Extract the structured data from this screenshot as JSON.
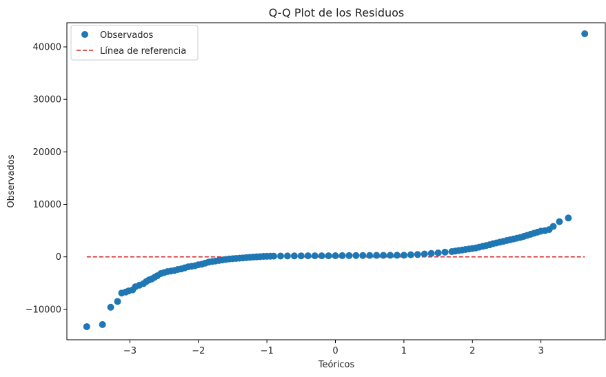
{
  "chart_data": {
    "type": "scatter",
    "title": "Q-Q Plot de los Residuos",
    "xlabel": "Teóricos",
    "ylabel": "Observados",
    "xlim": [
      -3.92,
      3.94
    ],
    "ylim": [
      -15800,
      44600
    ],
    "x_ticks": [
      -3,
      -2,
      -1,
      0,
      1,
      2,
      3
    ],
    "x_tick_labels": [
      "−3",
      "−2",
      "−1",
      "0",
      "1",
      "2",
      "3"
    ],
    "y_ticks": [
      -10000,
      0,
      10000,
      20000,
      30000,
      40000
    ],
    "y_tick_labels": [
      "−10000",
      "0",
      "10000",
      "20000",
      "30000",
      "40000"
    ],
    "legend": {
      "position": "top-left",
      "entries": [
        "Observados",
        "Línea de referencia"
      ]
    },
    "colors": {
      "points": "#1f77b4",
      "reference": "#d62728"
    },
    "series": [
      {
        "name": "Observados",
        "kind": "scatter",
        "x": [
          -3.63,
          -3.4,
          -3.28,
          -3.18,
          -3.12,
          -3.06,
          -3.02,
          -2.96,
          -2.92,
          -2.86,
          -2.8,
          -2.76,
          -2.72,
          -2.68,
          -2.64,
          -2.6,
          -2.55,
          -2.5,
          -2.45,
          -2.4,
          -2.35,
          -2.3,
          -2.25,
          -2.2,
          -2.15,
          -2.1,
          -2.05,
          -2.0,
          -1.95,
          -1.9,
          -1.85,
          -1.8,
          -1.75,
          -1.7,
          -1.65,
          -1.6,
          -1.55,
          -1.5,
          -1.45,
          -1.4,
          -1.35,
          -1.3,
          -1.25,
          -1.2,
          -1.15,
          -1.1,
          -1.05,
          -1.0,
          -0.95,
          -0.9,
          -0.8,
          -0.7,
          -0.6,
          -0.5,
          -0.4,
          -0.3,
          -0.2,
          -0.1,
          0.0,
          0.1,
          0.2,
          0.3,
          0.4,
          0.5,
          0.6,
          0.7,
          0.8,
          0.9,
          1.0,
          1.1,
          1.2,
          1.3,
          1.4,
          1.5,
          1.6,
          1.7,
          1.75,
          1.8,
          1.85,
          1.9,
          1.95,
          2.0,
          2.05,
          2.1,
          2.15,
          2.2,
          2.25,
          2.3,
          2.35,
          2.4,
          2.45,
          2.5,
          2.55,
          2.6,
          2.65,
          2.7,
          2.75,
          2.8,
          2.85,
          2.9,
          2.95,
          3.0,
          3.06,
          3.12,
          3.18,
          3.27,
          3.4,
          3.64
        ],
        "y": [
          -13300,
          -12900,
          -9600,
          -8500,
          -6900,
          -6700,
          -6500,
          -6300,
          -5700,
          -5400,
          -5100,
          -4700,
          -4400,
          -4200,
          -3900,
          -3600,
          -3200,
          -3000,
          -2800,
          -2700,
          -2600,
          -2400,
          -2300,
          -2100,
          -1900,
          -1800,
          -1700,
          -1500,
          -1400,
          -1200,
          -1000,
          -900,
          -800,
          -700,
          -600,
          -500,
          -400,
          -350,
          -300,
          -250,
          -200,
          -150,
          -100,
          -50,
          0,
          40,
          80,
          100,
          120,
          140,
          160,
          170,
          180,
          190,
          200,
          200,
          200,
          210,
          220,
          230,
          240,
          250,
          260,
          270,
          280,
          290,
          300,
          310,
          320,
          400,
          450,
          550,
          650,
          750,
          900,
          1000,
          1100,
          1200,
          1300,
          1400,
          1500,
          1600,
          1700,
          1850,
          2000,
          2150,
          2300,
          2500,
          2650,
          2800,
          2950,
          3100,
          3250,
          3400,
          3550,
          3700,
          3900,
          4100,
          4300,
          4500,
          4700,
          4900,
          5000,
          5200,
          5800,
          6700,
          7400,
          42500
        ]
      },
      {
        "name": "Línea de referencia",
        "kind": "line",
        "x": [
          -3.63,
          3.64
        ],
        "y": [
          0,
          0
        ]
      }
    ]
  }
}
